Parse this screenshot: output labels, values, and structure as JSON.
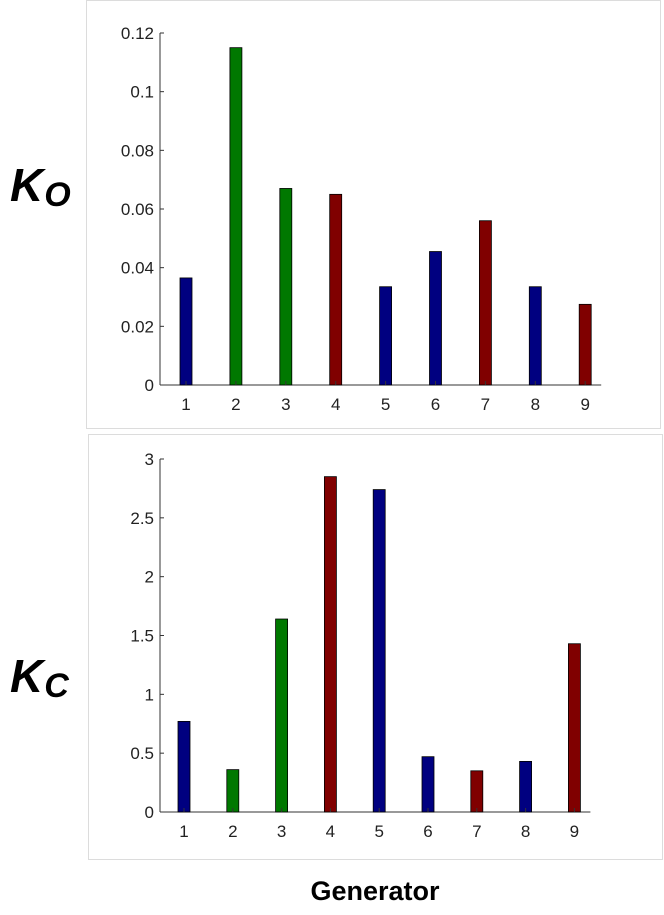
{
  "chart_data": [
    {
      "type": "bar",
      "ylabel": {
        "main": "K",
        "sub": "O"
      },
      "categories": [
        "1",
        "2",
        "3",
        "4",
        "5",
        "6",
        "7",
        "8",
        "9"
      ],
      "values": [
        0.0365,
        0.115,
        0.067,
        0.065,
        0.0335,
        0.0455,
        0.056,
        0.0335,
        0.0275
      ],
      "colors": [
        "#000080",
        "#007800",
        "#007800",
        "#800000",
        "#000080",
        "#000080",
        "#800000",
        "#000080",
        "#800000"
      ],
      "ylim": [
        0,
        0.12
      ],
      "yticks": [
        "0",
        "0.02",
        "0.04",
        "0.06",
        "0.08",
        "0.1",
        "0.12"
      ],
      "ytick_values": [
        0,
        0.02,
        0.04,
        0.06,
        0.08,
        0.1,
        0.12
      ]
    },
    {
      "type": "bar",
      "ylabel": {
        "main": "K",
        "sub": "C"
      },
      "categories": [
        "1",
        "2",
        "3",
        "4",
        "5",
        "6",
        "7",
        "8",
        "9"
      ],
      "values": [
        0.77,
        0.36,
        1.64,
        2.85,
        2.74,
        0.47,
        0.35,
        0.43,
        1.43
      ],
      "colors": [
        "#000080",
        "#007800",
        "#007800",
        "#800000",
        "#000080",
        "#000080",
        "#800000",
        "#000080",
        "#800000"
      ],
      "ylim": [
        0,
        3
      ],
      "yticks": [
        "0",
        "0.5",
        "1",
        "1.5",
        "2",
        "2.5",
        "3"
      ],
      "ytick_values": [
        0,
        0.5,
        1,
        1.5,
        2,
        2.5,
        3
      ]
    }
  ],
  "xlabel": "Generator"
}
